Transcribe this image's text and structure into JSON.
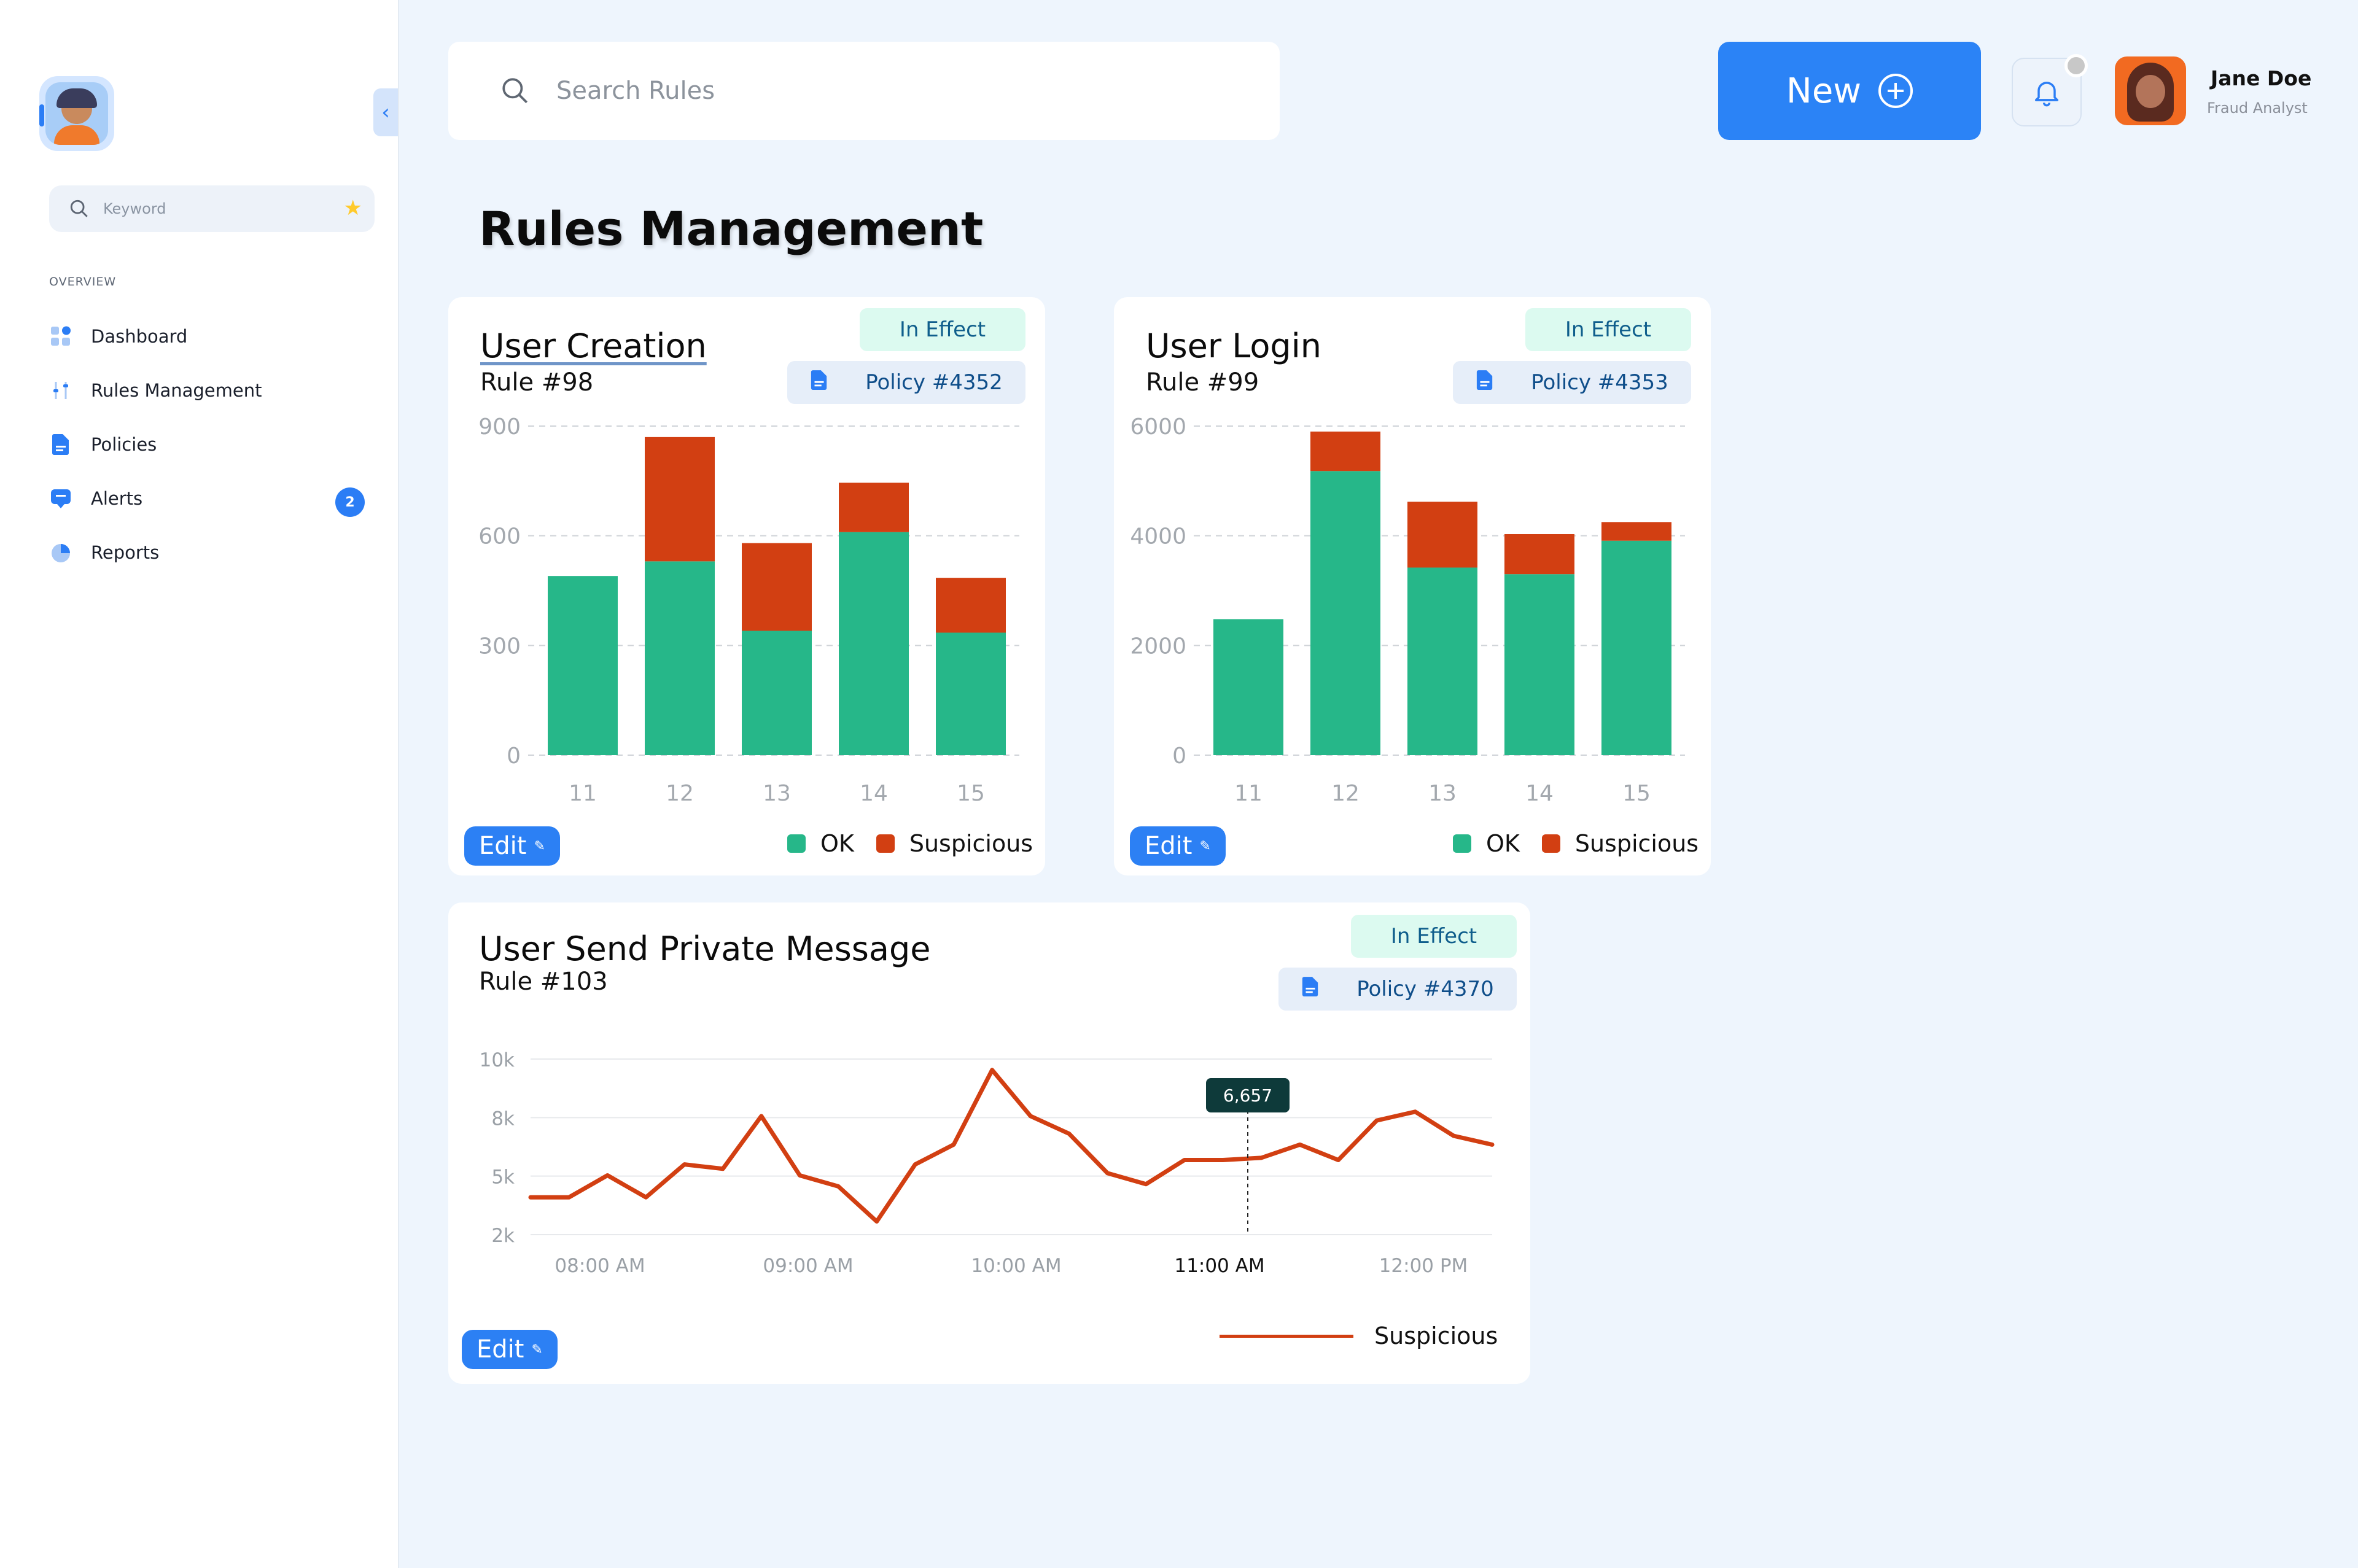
{
  "sidebar": {
    "keyword_placeholder": "Keyword",
    "section": "OVERVIEW",
    "items": [
      {
        "label": "Dashboard"
      },
      {
        "label": "Rules Management"
      },
      {
        "label": "Policies"
      },
      {
        "label": "Alerts",
        "badge": "2"
      },
      {
        "label": "Reports"
      }
    ]
  },
  "header": {
    "search_placeholder": "Search Rules",
    "new_label": "New",
    "user_name": "Jane Doe",
    "user_role": "Fraud Analyst"
  },
  "page_title": "Rules Management",
  "colors": {
    "ok": "#26b789",
    "suspicious": "#d23f12",
    "accent": "#2b83f6"
  },
  "cards": [
    {
      "title": "User Creation",
      "rule": "Rule #98",
      "status": "In Effect",
      "policy": "Policy #4352",
      "edit": "Edit",
      "legend_ok": "OK",
      "legend_susp": "Suspicious"
    },
    {
      "title": "User Login",
      "rule": "Rule #99",
      "status": "In Effect",
      "policy": "Policy #4353",
      "edit": "Edit",
      "legend_ok": "OK",
      "legend_susp": "Suspicious"
    },
    {
      "title": "User Send Private Message",
      "rule": "Rule #103",
      "status": "In Effect",
      "policy": "Policy #4370",
      "edit": "Edit",
      "legend_susp": "Suspicious"
    }
  ],
  "chart_data": [
    {
      "type": "bar",
      "categories": [
        "11",
        "12",
        "13",
        "14",
        "15"
      ],
      "series": [
        {
          "name": "OK",
          "values": [
            490,
            530,
            340,
            610,
            335
          ]
        },
        {
          "name": "Suspicious",
          "values": [
            0,
            340,
            240,
            135,
            150
          ]
        }
      ],
      "yticks": [
        "0",
        "300",
        "600",
        "900"
      ],
      "ylim": [
        0,
        900
      ]
    },
    {
      "type": "bar",
      "categories": [
        "11",
        "12",
        "13",
        "14",
        "15"
      ],
      "series": [
        {
          "name": "OK",
          "values": [
            2480,
            5180,
            3420,
            3300,
            3910
          ]
        },
        {
          "name": "Suspicious",
          "values": [
            0,
            720,
            1200,
            730,
            340
          ]
        }
      ],
      "yticks": [
        "0",
        "2000",
        "4000",
        "6000"
      ],
      "ylim": [
        0,
        6000
      ]
    },
    {
      "type": "line",
      "x_labels": [
        "08:00 AM",
        "09:00 AM",
        "10:00 AM",
        "11:00 AM",
        "12:00 PM"
      ],
      "series": [
        {
          "name": "Suspicious",
          "values": [
            3700,
            3700,
            4700,
            3700,
            5200,
            5000,
            7400,
            4700,
            4200,
            2600,
            5200,
            6100,
            9500,
            7400,
            6600,
            4800,
            4300,
            5400,
            5400,
            5500,
            6100,
            5400,
            7200,
            7600,
            6500,
            6100
          ]
        }
      ],
      "yticks": [
        "2k",
        "5k",
        "8k",
        "10k"
      ],
      "ylim": [
        2000,
        10000
      ],
      "highlight": {
        "label": "6,657",
        "x_label": "11:00 AM"
      }
    }
  ]
}
